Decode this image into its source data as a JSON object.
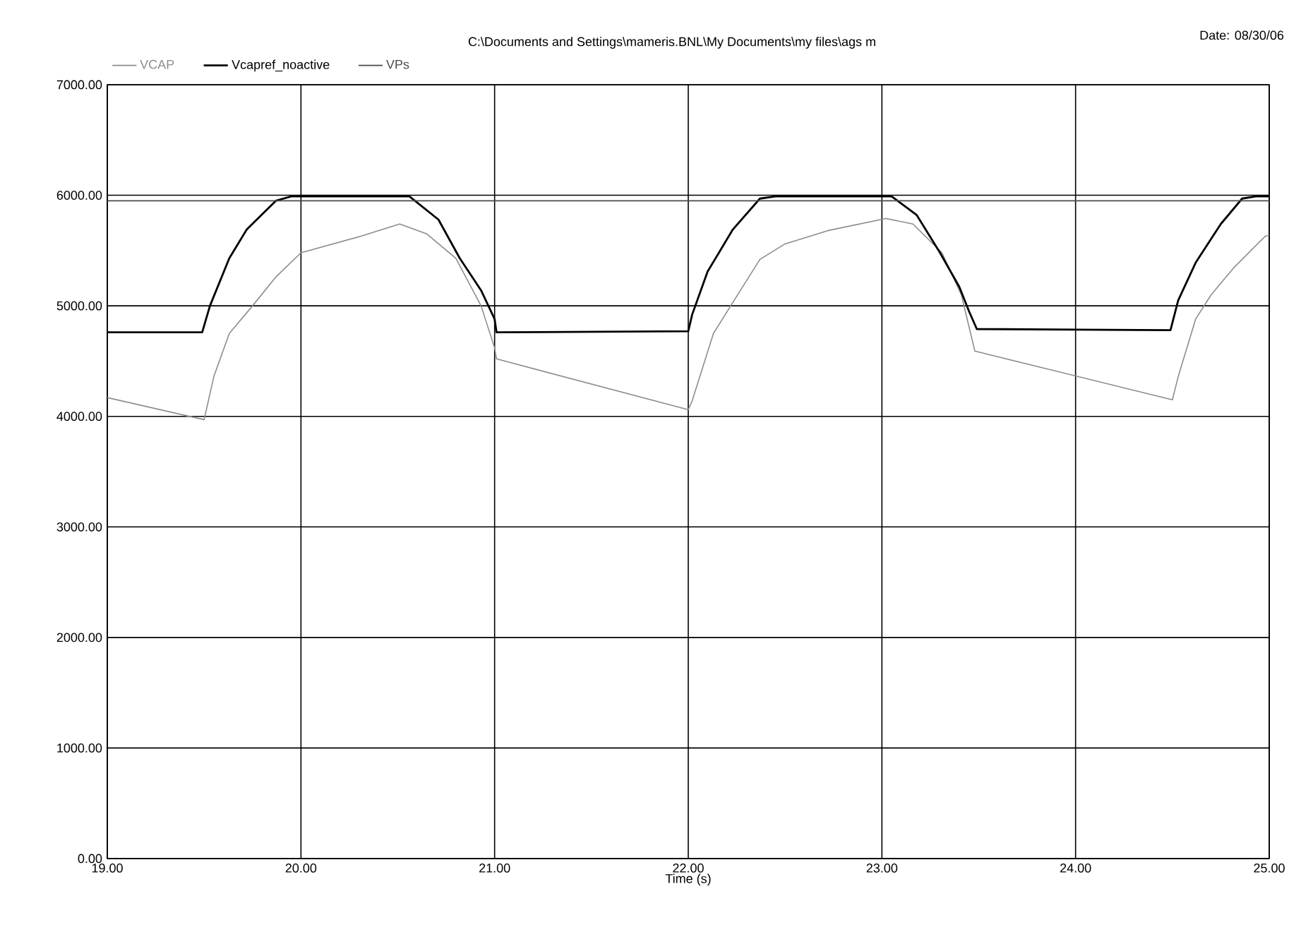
{
  "chart_data": {
    "type": "line",
    "title": "C:\\Documents and Settings\\mameris.BNL\\My Documents\\my files\\ags m",
    "annotations": [
      "Date: 08/30/06"
    ],
    "xlabel": "Time (s)",
    "xlim": [
      19,
      25
    ],
    "xticks": [
      {
        "value": 19,
        "label": "19.00"
      },
      {
        "value": 20,
        "label": "20.00"
      },
      {
        "value": 21,
        "label": "21.00"
      },
      {
        "value": 22,
        "label": "22.00"
      },
      {
        "value": 23,
        "label": "23.00"
      },
      {
        "value": 24,
        "label": "24.00"
      },
      {
        "value": 25,
        "label": "25.00"
      }
    ],
    "ylim": [
      0,
      7000
    ],
    "yticks": [
      {
        "value": 0,
        "label": "0.00"
      },
      {
        "value": 1000,
        "label": "1000.00"
      },
      {
        "value": 2000,
        "label": "2000.00"
      },
      {
        "value": 3000,
        "label": "3000.00"
      },
      {
        "value": 4000,
        "label": "4000.00"
      },
      {
        "value": 5000,
        "label": "5000.00"
      },
      {
        "value": 6000,
        "label": "6000.00"
      },
      {
        "value": 7000,
        "label": "7000.00"
      }
    ],
    "grid": true,
    "legend": "top left",
    "line_style": "solid",
    "marker": "none",
    "series": [
      {
        "name": "VCAP",
        "color": "#8c8c8c",
        "x": [
          19,
          19.5,
          19.55,
          19.63,
          19.75,
          19.87,
          20.0,
          20.31,
          20.51,
          20.65,
          20.8,
          20.93,
          21.0,
          21.01,
          22.0,
          22.02,
          22.13,
          22.23,
          22.37,
          22.5,
          22.72,
          23.02,
          23.16,
          23.31,
          23.41,
          23.48,
          24.5,
          24.53,
          24.62,
          24.7,
          24.82,
          24.98,
          25
        ],
        "values": [
          4170,
          3970,
          4360,
          4750,
          5000,
          5260,
          5480,
          5630,
          5740,
          5650,
          5430,
          5000,
          4620,
          4520,
          4060,
          4140,
          4750,
          5030,
          5420,
          5560,
          5680,
          5790,
          5740,
          5480,
          5100,
          4590,
          4150,
          4360,
          4880,
          5100,
          5350,
          5630,
          5640
        ]
      },
      {
        "name": "Vcapref_noactive",
        "color": "#000000",
        "x": [
          19,
          19.49,
          19.53,
          19.63,
          19.72,
          19.87,
          19.95,
          20.56,
          20.71,
          20.82,
          20.93,
          21.0,
          21.01,
          22.0,
          22.02,
          22.1,
          22.23,
          22.37,
          22.45,
          23.05,
          23.18,
          23.3,
          23.4,
          23.45,
          23.49,
          24.49,
          24.53,
          24.62,
          24.75,
          24.86,
          24.93,
          25
        ],
        "values": [
          4760,
          4760,
          5000,
          5430,
          5690,
          5950,
          5990,
          5990,
          5780,
          5430,
          5140,
          4880,
          4760,
          4770,
          4920,
          5310,
          5690,
          5970,
          5990,
          5990,
          5820,
          5480,
          5170,
          4950,
          4790,
          4780,
          5050,
          5390,
          5740,
          5970,
          5990,
          5990
        ]
      },
      {
        "name": "VPs",
        "color": "#4a4a4a",
        "x": [
          19,
          25
        ],
        "values": [
          5950,
          5950
        ]
      }
    ]
  }
}
